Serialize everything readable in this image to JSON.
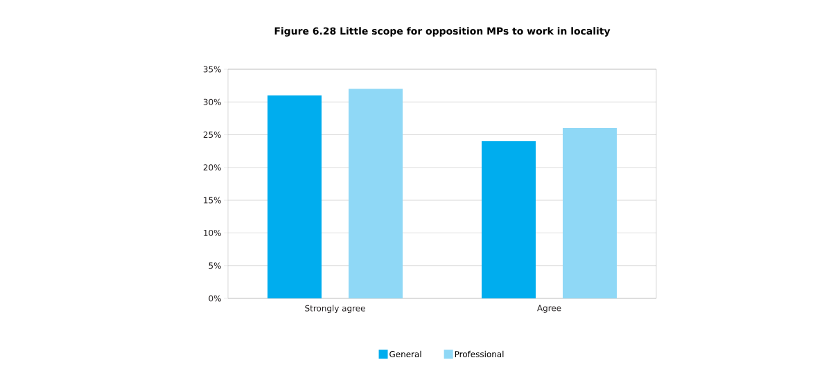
{
  "chart_data": {
    "type": "bar",
    "title": "Figure 6.28 Little scope for opposition MPs to work in locality",
    "categories": [
      "Strongly agree",
      "Agree"
    ],
    "series": [
      {
        "name": "General",
        "color": "#00adee",
        "values": [
          31,
          24
        ]
      },
      {
        "name": "Professional",
        "color": "#8fd8f6",
        "values": [
          32,
          26
        ]
      }
    ],
    "ylim": [
      0,
      35
    ],
    "yticks": [
      {
        "value": 0,
        "label": "0%"
      },
      {
        "value": 5,
        "label": "5%"
      },
      {
        "value": 10,
        "label": "10%"
      },
      {
        "value": 15,
        "label": "15%"
      },
      {
        "value": 20,
        "label": "20%"
      },
      {
        "value": 25,
        "label": "25%"
      },
      {
        "value": 30,
        "label": "30%"
      },
      {
        "value": 35,
        "label": "35%"
      }
    ],
    "grid": "y",
    "legend": "bottom"
  }
}
